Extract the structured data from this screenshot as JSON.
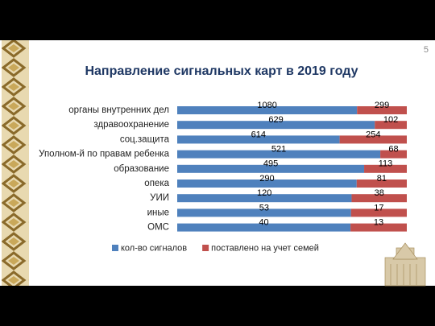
{
  "slide": {
    "page_number": "5"
  },
  "chart_data": {
    "type": "bar",
    "orientation": "horizontal",
    "stacking": "percent",
    "title": "Направление сигнальных карт в 2019 году",
    "categories": [
      "органы внутренних дел",
      "здравоохранение",
      "соц.защита",
      "Уполном-й по правам ребенка",
      "образование",
      "опека",
      "УИИ",
      "иные",
      "ОМС"
    ],
    "series": [
      {
        "name": "кол-во сигналов",
        "color": "#4f81bd",
        "values": [
          1080,
          629,
          614,
          521,
          495,
          290,
          120,
          53,
          40
        ]
      },
      {
        "name": "поставлено на учет семей",
        "color": "#c0504d",
        "values": [
          299,
          102,
          254,
          68,
          113,
          81,
          38,
          17,
          13
        ]
      }
    ],
    "legend": "bottom"
  }
}
